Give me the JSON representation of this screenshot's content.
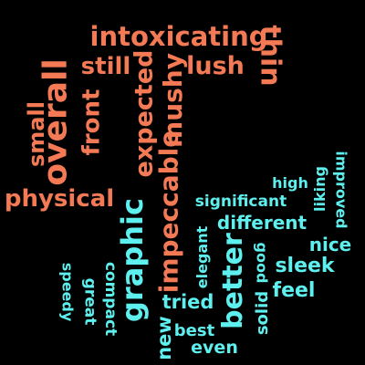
{
  "colors": {
    "background": "#000000",
    "negative": "#f47a55",
    "positive": "#5ef0ee"
  },
  "words": [
    {
      "text": "intoxicating",
      "group": "negative"
    },
    {
      "text": "thin",
      "group": "negative"
    },
    {
      "text": "still",
      "group": "negative"
    },
    {
      "text": "lush",
      "group": "negative"
    },
    {
      "text": "overall",
      "group": "negative"
    },
    {
      "text": "small",
      "group": "negative"
    },
    {
      "text": "front",
      "group": "negative"
    },
    {
      "text": "expected",
      "group": "negative"
    },
    {
      "text": "mushy",
      "group": "negative"
    },
    {
      "text": "physical",
      "group": "negative"
    },
    {
      "text": "impeccable",
      "group": "negative"
    },
    {
      "text": "graphic",
      "group": "positive"
    },
    {
      "text": "high",
      "group": "positive"
    },
    {
      "text": "liking",
      "group": "positive"
    },
    {
      "text": "improved",
      "group": "positive"
    },
    {
      "text": "significant",
      "group": "positive"
    },
    {
      "text": "different",
      "group": "positive"
    },
    {
      "text": "nice",
      "group": "positive"
    },
    {
      "text": "elegant",
      "group": "positive"
    },
    {
      "text": "better",
      "group": "positive"
    },
    {
      "text": "good",
      "group": "positive"
    },
    {
      "text": "sleek",
      "group": "positive"
    },
    {
      "text": "speedy",
      "group": "positive"
    },
    {
      "text": "compact",
      "group": "positive"
    },
    {
      "text": "great",
      "group": "positive"
    },
    {
      "text": "feel",
      "group": "positive"
    },
    {
      "text": "tried",
      "group": "positive"
    },
    {
      "text": "solid",
      "group": "positive"
    },
    {
      "text": "new",
      "group": "positive"
    },
    {
      "text": "best",
      "group": "positive"
    },
    {
      "text": "even",
      "group": "positive"
    }
  ]
}
